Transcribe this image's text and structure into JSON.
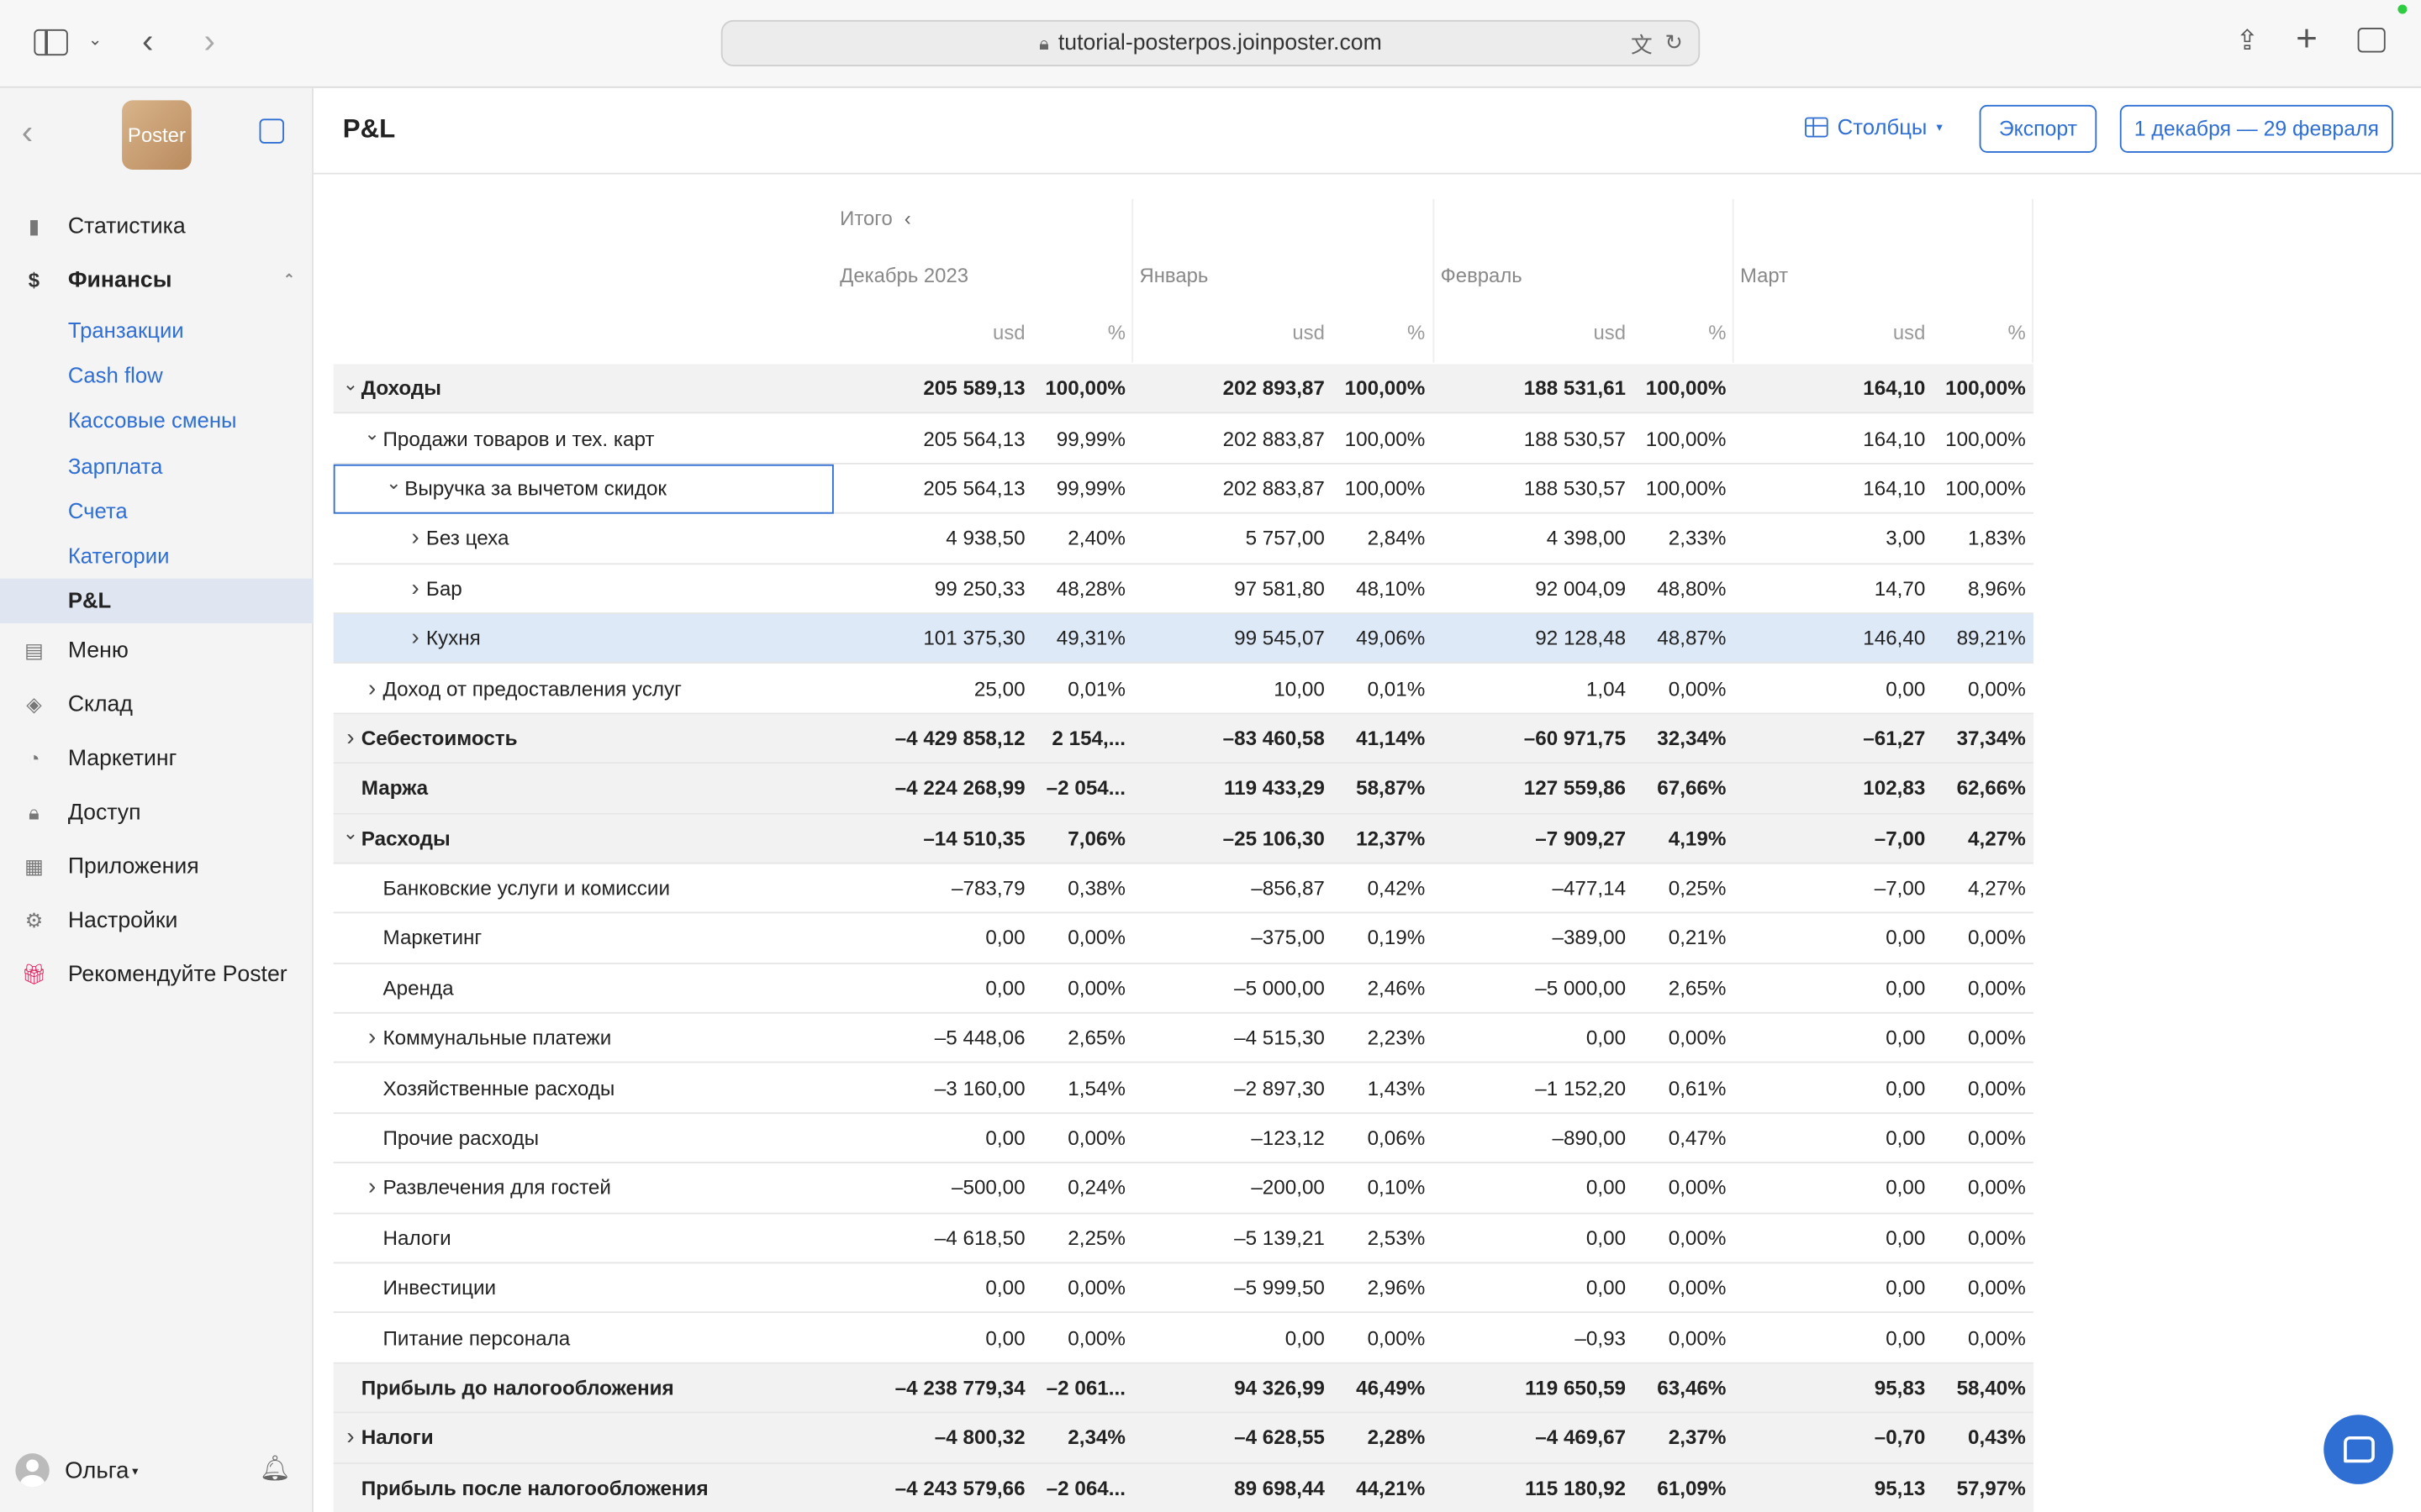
{
  "browser": {
    "url": "tutorial-posterpos.joinposter.com"
  },
  "app": {
    "logo_text": "Poster"
  },
  "sidebar": {
    "items": [
      {
        "label": "Статистика",
        "icon": "bar-chart-icon"
      },
      {
        "label": "Финансы",
        "icon": "dollar-icon"
      },
      {
        "label": "Меню",
        "icon": "document-icon"
      },
      {
        "label": "Склад",
        "icon": "layers-icon"
      },
      {
        "label": "Маркетинг",
        "icon": "pie-icon"
      },
      {
        "label": "Доступ",
        "icon": "lock-icon"
      },
      {
        "label": "Приложения",
        "icon": "grid-icon"
      },
      {
        "label": "Настройки",
        "icon": "gear-icon"
      },
      {
        "label": "Рекомендуйте Poster",
        "icon": "gift-icon"
      }
    ],
    "finance_sub": [
      "Транзакции",
      "Cash flow",
      "Кассовые смены",
      "Зарплата",
      "Счета",
      "Категории",
      "P&L"
    ],
    "user": "Ольга"
  },
  "header": {
    "title": "P&L",
    "columns_label": "Столбцы",
    "export_label": "Экспорт",
    "period_label": "1 декабря — 29 февраля"
  },
  "table": {
    "total_label": "Итого",
    "months": [
      "Декабрь 2023",
      "Январь",
      "Февраль",
      "Март"
    ],
    "unit": "usd",
    "pct": "%",
    "rows": [
      {
        "label": "Доходы",
        "vals": [
          "205 589,13",
          "100,00%",
          "202 893,87",
          "100,00%",
          "188 531,61",
          "100,00%",
          "164,10",
          "100,00%"
        ]
      },
      {
        "label": "Продажи товаров и тех. карт",
        "vals": [
          "205 564,13",
          "99,99%",
          "202 883,87",
          "100,00%",
          "188 530,57",
          "100,00%",
          "164,10",
          "100,00%"
        ]
      },
      {
        "label": "Выручка за вычетом скидок",
        "vals": [
          "205 564,13",
          "99,99%",
          "202 883,87",
          "100,00%",
          "188 530,57",
          "100,00%",
          "164,10",
          "100,00%"
        ]
      },
      {
        "label": "Без цеха",
        "vals": [
          "4 938,50",
          "2,40%",
          "5 757,00",
          "2,84%",
          "4 398,00",
          "2,33%",
          "3,00",
          "1,83%"
        ]
      },
      {
        "label": "Бар",
        "vals": [
          "99 250,33",
          "48,28%",
          "97 581,80",
          "48,10%",
          "92 004,09",
          "48,80%",
          "14,70",
          "8,96%"
        ]
      },
      {
        "label": "Кухня",
        "vals": [
          "101 375,30",
          "49,31%",
          "99 545,07",
          "49,06%",
          "92 128,48",
          "48,87%",
          "146,40",
          "89,21%"
        ]
      },
      {
        "label": "Доход от предоставления услуг",
        "vals": [
          "25,00",
          "0,01%",
          "10,00",
          "0,01%",
          "1,04",
          "0,00%",
          "0,00",
          "0,00%"
        ]
      },
      {
        "label": "Себестоимость",
        "vals": [
          "–4 429 858,12",
          "2 154,...",
          "–83 460,58",
          "41,14%",
          "–60 971,75",
          "32,34%",
          "–61,27",
          "37,34%"
        ]
      },
      {
        "label": "Маржа",
        "vals": [
          "–4 224 268,99",
          "–2 054...",
          "119 433,29",
          "58,87%",
          "127 559,86",
          "67,66%",
          "102,83",
          "62,66%"
        ]
      },
      {
        "label": "Расходы",
        "vals": [
          "–14 510,35",
          "7,06%",
          "–25 106,30",
          "12,37%",
          "–7 909,27",
          "4,19%",
          "–7,00",
          "4,27%"
        ]
      },
      {
        "label": "Банковские услуги и комиссии",
        "vals": [
          "–783,79",
          "0,38%",
          "–856,87",
          "0,42%",
          "–477,14",
          "0,25%",
          "–7,00",
          "4,27%"
        ]
      },
      {
        "label": "Маркетинг",
        "vals": [
          "0,00",
          "0,00%",
          "–375,00",
          "0,19%",
          "–389,00",
          "0,21%",
          "0,00",
          "0,00%"
        ]
      },
      {
        "label": "Аренда",
        "vals": [
          "0,00",
          "0,00%",
          "–5 000,00",
          "2,46%",
          "–5 000,00",
          "2,65%",
          "0,00",
          "0,00%"
        ]
      },
      {
        "label": "Коммунальные платежи",
        "vals": [
          "–5 448,06",
          "2,65%",
          "–4 515,30",
          "2,23%",
          "0,00",
          "0,00%",
          "0,00",
          "0,00%"
        ]
      },
      {
        "label": "Хозяйственные расходы",
        "vals": [
          "–3 160,00",
          "1,54%",
          "–2 897,30",
          "1,43%",
          "–1 152,20",
          "0,61%",
          "0,00",
          "0,00%"
        ]
      },
      {
        "label": "Прочие расходы",
        "vals": [
          "0,00",
          "0,00%",
          "–123,12",
          "0,06%",
          "–890,00",
          "0,47%",
          "0,00",
          "0,00%"
        ]
      },
      {
        "label": "Развлечения для гостей",
        "vals": [
          "–500,00",
          "0,24%",
          "–200,00",
          "0,10%",
          "0,00",
          "0,00%",
          "0,00",
          "0,00%"
        ]
      },
      {
        "label": "Налоги",
        "vals": [
          "–4 618,50",
          "2,25%",
          "–5 139,21",
          "2,53%",
          "0,00",
          "0,00%",
          "0,00",
          "0,00%"
        ]
      },
      {
        "label": "Инвестиции",
        "vals": [
          "0,00",
          "0,00%",
          "–5 999,50",
          "2,96%",
          "0,00",
          "0,00%",
          "0,00",
          "0,00%"
        ]
      },
      {
        "label": "Питание персонала",
        "vals": [
          "0,00",
          "0,00%",
          "0,00",
          "0,00%",
          "–0,93",
          "0,00%",
          "0,00",
          "0,00%"
        ]
      },
      {
        "label": "Прибыль до налогообложения",
        "vals": [
          "–4 238 779,34",
          "–2 061...",
          "94 326,99",
          "46,49%",
          "119 650,59",
          "63,46%",
          "95,83",
          "58,40%"
        ]
      },
      {
        "label": "Налоги",
        "vals": [
          "–4 800,32",
          "2,34%",
          "–4 628,55",
          "2,28%",
          "–4 469,67",
          "2,37%",
          "–0,70",
          "0,43%"
        ]
      },
      {
        "label": "Прибыль после налогообложения",
        "vals": [
          "–4 243 579,66",
          "–2 064...",
          "89 698,44",
          "44,21%",
          "115 180,92",
          "61,09%",
          "95,13",
          "57,97%"
        ]
      }
    ]
  }
}
